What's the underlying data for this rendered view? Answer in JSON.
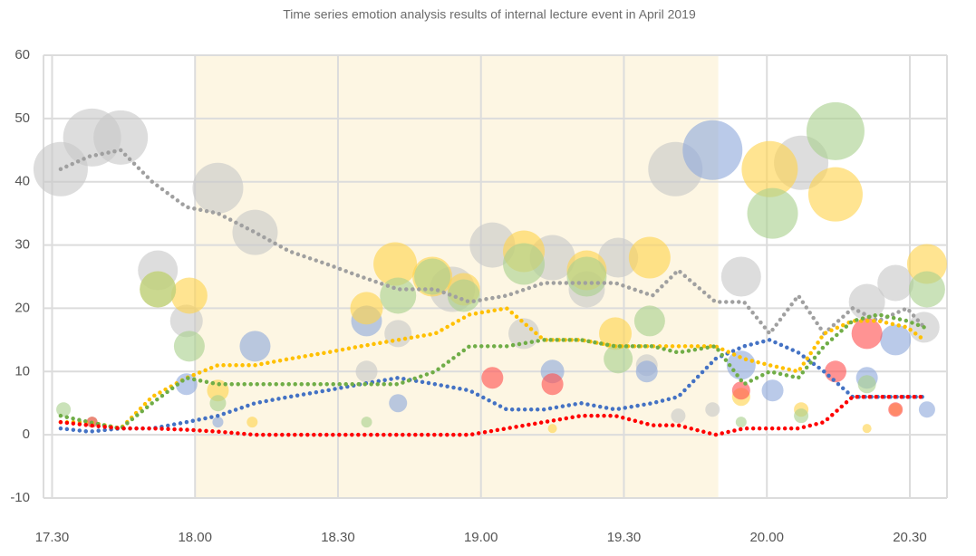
{
  "chart_data": {
    "type": "bubble",
    "title": "Time series emotion analysis results of internal lecture event in April 2019",
    "xlim": [
      17.47,
      20.63
    ],
    "xticks": [
      {
        "value": 17.5,
        "label": "17.30"
      },
      {
        "value": 18,
        "label": "18.00"
      },
      {
        "value": 18.5,
        "label": "18.30"
      },
      {
        "value": 19,
        "label": "19.00"
      },
      {
        "value": 19.5,
        "label": "19.30"
      },
      {
        "value": 20,
        "label": "20.00"
      },
      {
        "value": 20.5,
        "label": "20.30"
      }
    ],
    "ylim": [
      -10,
      60
    ],
    "yticks": [
      -10,
      0,
      10,
      20,
      30,
      40,
      50,
      60
    ],
    "grid": true,
    "highlight": {
      "xlim": [
        18,
        19.83
      ],
      "color": "#fdf6e3"
    },
    "x": [
      17.53,
      17.63,
      17.74,
      17.85,
      17.97,
      18.08,
      18.21,
      18.33,
      18.46,
      18.58,
      18.71,
      18.84,
      18.96,
      19.09,
      19.22,
      19.35,
      19.47,
      19.6,
      19.69,
      19.82,
      19.92,
      20.01,
      20.11,
      20.2,
      20.3,
      20.39,
      20.49,
      20.55
    ],
    "lines": [
      {
        "color": "#a0a0a0",
        "values": [
          42,
          44,
          45,
          40,
          36,
          35,
          32,
          29,
          27,
          25,
          23,
          23,
          21,
          22,
          24,
          24,
          24,
          22,
          26,
          21,
          21,
          16,
          22,
          16,
          20,
          18,
          20,
          17
        ]
      },
      {
        "color": "#4472c4",
        "values": [
          1,
          0.5,
          1,
          1,
          2,
          3,
          5,
          6,
          7,
          8,
          9,
          8,
          7,
          4,
          4,
          5,
          4,
          5,
          6,
          12,
          14,
          15,
          13,
          10,
          6,
          6,
          6,
          6
        ]
      },
      {
        "color": "#ffc000",
        "values": [
          2,
          2,
          1,
          6,
          9,
          11,
          11,
          12,
          13,
          14,
          15,
          16,
          19,
          20,
          15,
          15,
          14,
          14,
          14,
          14,
          12,
          11,
          10,
          16,
          18,
          18,
          17,
          15
        ]
      },
      {
        "color": "#70ad47",
        "values": [
          3,
          2,
          1,
          5,
          9,
          8,
          8,
          8,
          8,
          8,
          8,
          10,
          14,
          14,
          15,
          15,
          14,
          14,
          13,
          14,
          8,
          10,
          9,
          14,
          18,
          19,
          18,
          17
        ]
      },
      {
        "color": "#ff0000",
        "values": [
          2,
          1.5,
          1,
          1,
          0.8,
          0.5,
          0,
          0,
          0,
          0,
          0,
          0,
          0,
          1,
          2,
          3,
          3,
          1.5,
          1.5,
          0,
          1,
          1,
          1,
          2,
          6,
          6,
          6,
          6
        ]
      }
    ],
    "bubbles": [
      {
        "color": "#c8c8c8",
        "x": [
          17.53,
          17.64,
          17.74,
          17.87,
          17.97,
          18.08,
          18.21,
          18.6,
          18.71,
          18.9,
          19.04,
          19.15,
          19.25,
          19.37,
          19.48,
          19.58,
          19.68,
          19.91,
          20.12,
          20.35,
          20.45,
          20.55,
          19.81,
          19.69
        ],
        "values": [
          42,
          47,
          47,
          26,
          18,
          39,
          32,
          10,
          16,
          23,
          30,
          16,
          28,
          23,
          28,
          11,
          42,
          25,
          43,
          21,
          24,
          17,
          4,
          3
        ],
        "sizes": [
          30,
          32,
          30,
          22,
          18,
          28,
          25,
          12,
          15,
          25,
          25,
          17,
          25,
          20,
          22,
          12,
          30,
          22,
          30,
          20,
          20,
          17,
          8,
          8
        ]
      },
      {
        "color": "#8faadc",
        "x": [
          17.97,
          18.08,
          18.21,
          18.6,
          18.71,
          19.25,
          19.58,
          19.81,
          19.91,
          20.02,
          20.35,
          20.45,
          20.56
        ],
        "values": [
          8,
          2,
          14,
          18,
          5,
          10,
          10,
          45,
          11,
          7,
          9,
          15,
          4
        ],
        "sizes": [
          12,
          6,
          17,
          17,
          10,
          13,
          12,
          33,
          16,
          12,
          12,
          17,
          9
        ]
      },
      {
        "color": "#ffd34d",
        "x": [
          17.87,
          17.98,
          18.08,
          18.2,
          18.6,
          18.7,
          18.83,
          18.94,
          19.15,
          19.25,
          19.37,
          19.47,
          19.59,
          19.91,
          20.01,
          20.12,
          20.24,
          20.35,
          20.45,
          20.56
        ],
        "values": [
          23,
          22,
          7,
          2,
          20,
          27,
          25,
          23,
          29,
          1,
          26,
          16,
          28,
          6,
          42,
          4,
          38,
          1,
          4,
          27
        ],
        "sizes": [
          20,
          20,
          12,
          6,
          18,
          24,
          22,
          18,
          23,
          5,
          22,
          18,
          23,
          10,
          31,
          8,
          30,
          5,
          7,
          22
        ]
      },
      {
        "color": "#a9d18e",
        "x": [
          17.54,
          17.64,
          17.87,
          17.98,
          18.08,
          18.6,
          18.71,
          18.83,
          18.94,
          19.15,
          19.37,
          19.48,
          19.59,
          19.91,
          20.02,
          20.12,
          20.24,
          20.35,
          20.56
        ],
        "values": [
          4,
          2,
          23,
          14,
          5,
          2,
          22,
          25,
          22,
          27,
          25,
          12,
          18,
          2,
          35,
          3,
          48,
          8,
          23
        ],
        "sizes": [
          8,
          6,
          20,
          17,
          9,
          6,
          20,
          20,
          18,
          23,
          22,
          16,
          17,
          6,
          28,
          8,
          32,
          10,
          20
        ]
      },
      {
        "color": "#ff5050",
        "x": [
          17.64,
          19.04,
          19.25,
          19.91,
          20.24,
          20.35,
          20.45
        ],
        "values": [
          2,
          9,
          8,
          7,
          10,
          16,
          4
        ],
        "sizes": [
          6,
          12,
          12,
          10,
          12,
          17,
          8
        ]
      }
    ]
  }
}
